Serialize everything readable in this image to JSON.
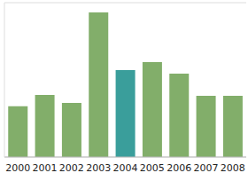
{
  "chart_data": {
    "type": "bar",
    "categories": [
      "2000",
      "2001",
      "2002",
      "2003",
      "2004",
      "2005",
      "2006",
      "2007",
      "2008"
    ],
    "values": [
      1.97,
      2.41,
      2.1,
      5.62,
      3.38,
      3.69,
      3.24,
      2.38,
      2.38
    ],
    "colors": [
      "#82ae6a",
      "#82ae6a",
      "#82ae6a",
      "#82ae6a",
      "#3a9e9b",
      "#82ae6a",
      "#82ae6a",
      "#82ae6a",
      "#82ae6a"
    ],
    "ylim": [
      0,
      6
    ],
    "yticks": [
      0,
      1,
      2,
      3,
      4,
      5,
      6
    ],
    "grid": true,
    "tick_labels": "x"
  }
}
